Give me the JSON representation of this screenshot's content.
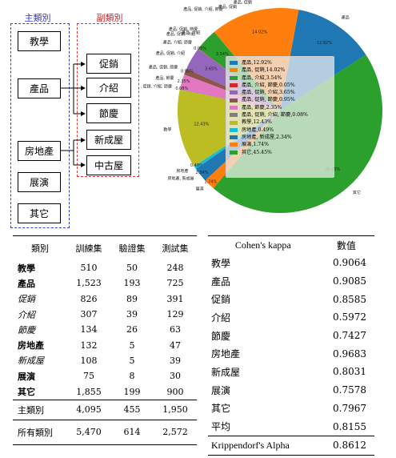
{
  "diagram": {
    "main_caption": "主類別",
    "sub_caption": "副類別",
    "main_categories": [
      "教學",
      "產品",
      "房地產",
      "展演",
      "其它"
    ],
    "sub_categories": [
      "促銷",
      "介紹",
      "節慶",
      "新成屋",
      "中古屋"
    ]
  },
  "chart_data": {
    "type": "pie",
    "legend_position": "center",
    "slices": [
      {
        "label": "產品",
        "value": 12.92,
        "display": "12.92%",
        "color": "#1f77b4"
      },
      {
        "label": "產品, 促銷",
        "value": 14.02,
        "display": "14.02%",
        "color": "#ff7f0e"
      },
      {
        "label": "產品, 介紹",
        "value": 3.54,
        "display": "3.54%",
        "color": "#2ca02c"
      },
      {
        "label": "產品, 介紹, 節慶",
        "value": 0.05,
        "display": "0.05%",
        "color": "#d62728"
      },
      {
        "label": "產品, 促銷, 介紹",
        "value": 3.65,
        "display": "3.65%",
        "color": "#9467bd"
      },
      {
        "label": "產品, 促銷, 節慶",
        "value": 0.95,
        "display": "0.95%",
        "color": "#8c564b"
      },
      {
        "label": "產品, 節慶",
        "value": 2.35,
        "display": "2.35%",
        "color": "#e377c2"
      },
      {
        "label": "產品, 促銷, 介紹, 節慶",
        "value": 0.08,
        "display": "0.08%",
        "color": "#7f7f7f"
      },
      {
        "label": "教學",
        "value": 12.43,
        "display": "12.43%",
        "color": "#bcbd22"
      },
      {
        "label": "房地產",
        "value": 0.49,
        "display": "0.49%",
        "color": "#17becf"
      },
      {
        "label": "房地產, 新成屋",
        "value": 2.34,
        "display": "2.34%",
        "color": "#1f77b4"
      },
      {
        "label": "展演",
        "value": 1.74,
        "display": "1.74%",
        "color": "#ff7f0e"
      },
      {
        "label": "其它",
        "value": 45.45,
        "display": "45.45%",
        "color": "#2ca02c"
      }
    ]
  },
  "pie_outer_labels": {
    "top_left_2": "產品, 促銷, 介紹",
    "top_left_3": "產品, 促銷, 節慶",
    "top_left_4": "產品, 促銷, 介紹, 節慶",
    "top_right": "產品, 促銷"
  },
  "split_table": {
    "headers": [
      "類別",
      "訓練集",
      "驗證集",
      "測試集"
    ],
    "rows": [
      {
        "name": "教學",
        "train": "510",
        "val": "50",
        "test": "248",
        "style": "bold"
      },
      {
        "name": "產品",
        "train": "1,523",
        "val": "193",
        "test": "725",
        "style": "bold"
      },
      {
        "name": "促銷",
        "train": "826",
        "val": "89",
        "test": "391",
        "style": "italic"
      },
      {
        "name": "介紹",
        "train": "307",
        "val": "39",
        "test": "129",
        "style": "italic"
      },
      {
        "name": "節慶",
        "train": "134",
        "val": "26",
        "test": "63",
        "style": "italic"
      },
      {
        "name": "房地產",
        "train": "132",
        "val": "5",
        "test": "47",
        "style": "bold"
      },
      {
        "name": "新成屋",
        "train": "108",
        "val": "5",
        "test": "39",
        "style": "italic"
      },
      {
        "name": "展演",
        "train": "75",
        "val": "8",
        "test": "30",
        "style": "bold"
      },
      {
        "name": "其它",
        "train": "1,855",
        "val": "199",
        "test": "900",
        "style": "bold"
      }
    ],
    "totals": [
      {
        "name": "主類別",
        "train": "4,095",
        "val": "455",
        "test": "1,950"
      },
      {
        "name": "所有類別",
        "train": "5,470",
        "val": "614",
        "test": "2,572"
      }
    ]
  },
  "kappa_table": {
    "headers": [
      "Cohen's kappa",
      "數值"
    ],
    "rows": [
      {
        "name": "教學",
        "value": "0.9064"
      },
      {
        "name": "產品",
        "value": "0.9085"
      },
      {
        "name": "促銷",
        "value": "0.8585"
      },
      {
        "name": "介紹",
        "value": "0.5972"
      },
      {
        "name": "節慶",
        "value": "0.7427"
      },
      {
        "name": "房地產",
        "value": "0.9683"
      },
      {
        "name": "新成屋",
        "value": "0.8031"
      },
      {
        "name": "展演",
        "value": "0.7578"
      },
      {
        "name": "其它",
        "value": "0.7967"
      },
      {
        "name": "平均",
        "value": "0.8155"
      }
    ],
    "footer": {
      "name": "Krippendorf's Alpha",
      "value": "0.8612"
    }
  }
}
